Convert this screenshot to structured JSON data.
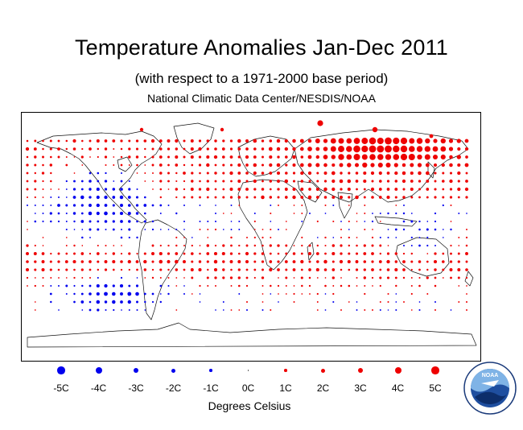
{
  "title": "Temperature Anomalies Jan-Dec 2011",
  "subtitle": "(with respect to a 1971-2000 base period)",
  "source": "National Climatic Data Center/NESDIS/NOAA",
  "legend": {
    "units": "Degrees Celsius",
    "cold_color": "#0000ee",
    "warm_color": "#ee0000",
    "items": [
      {
        "label": "-5C",
        "value": -5
      },
      {
        "label": "-4C",
        "value": -4
      },
      {
        "label": "-3C",
        "value": -3
      },
      {
        "label": "-2C",
        "value": -2
      },
      {
        "label": "-1C",
        "value": -1
      },
      {
        "label": "0C",
        "value": 0
      },
      {
        "label": "1C",
        "value": 1
      },
      {
        "label": "2C",
        "value": 2
      },
      {
        "label": "3C",
        "value": 3
      },
      {
        "label": "4C",
        "value": 4
      },
      {
        "label": "5C",
        "value": 5
      }
    ]
  },
  "logo": {
    "text": "NOAA"
  }
}
